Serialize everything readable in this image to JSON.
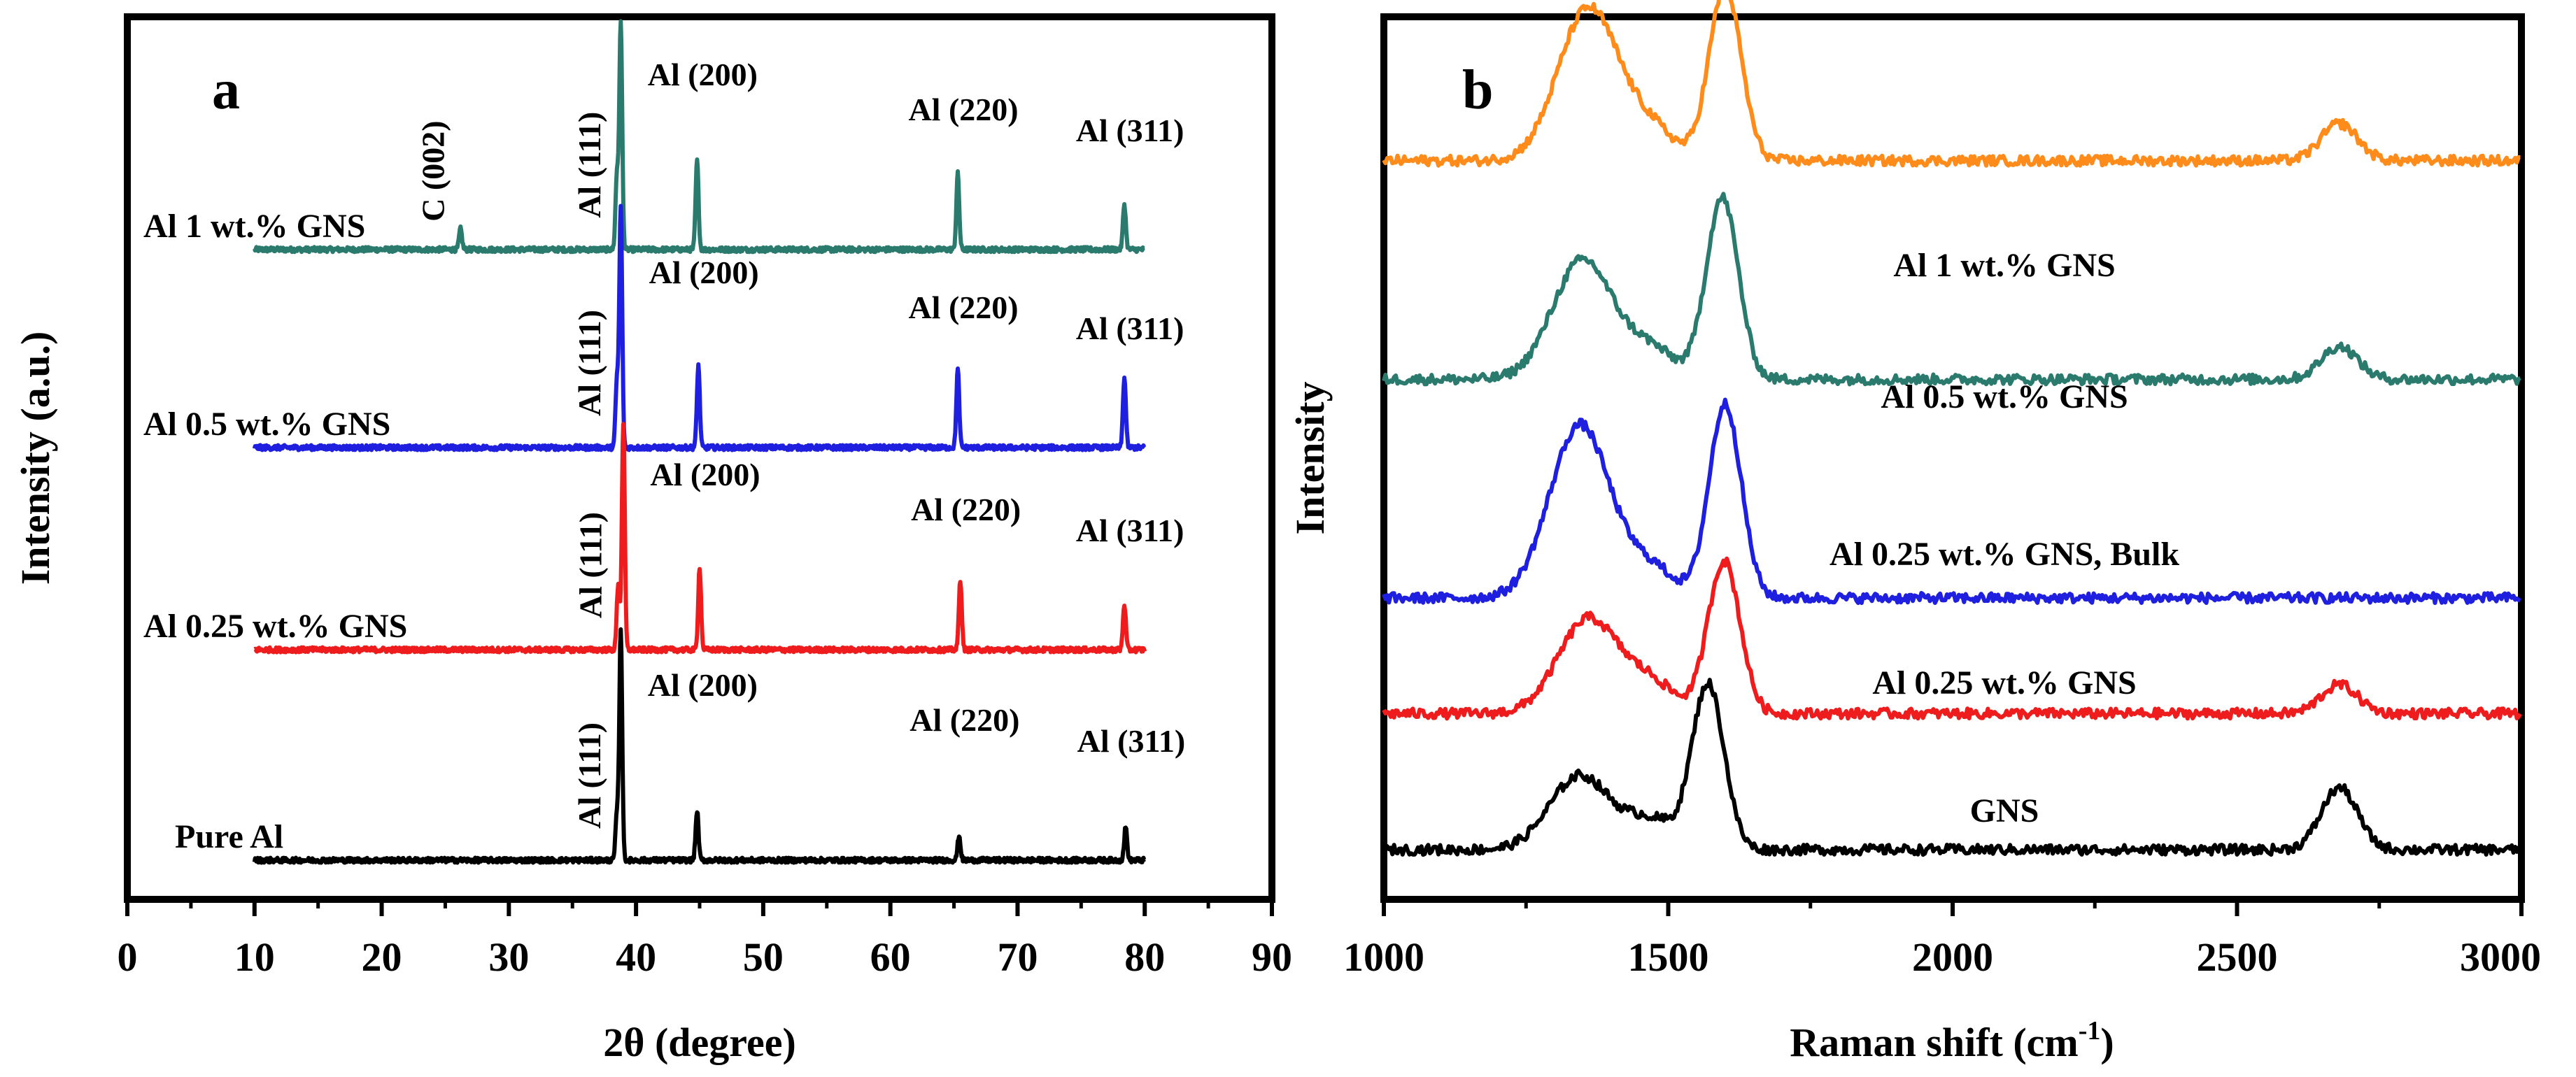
{
  "chart_data": [
    {
      "type": "line",
      "panel_label": "a",
      "xlabel": "2θ (degree)",
      "ylabel": "Intensity (a.u.)",
      "xlim": [
        0,
        90
      ],
      "xticks": [
        "0",
        "10",
        "20",
        "30",
        "40",
        "50",
        "60",
        "70",
        "80",
        "90"
      ],
      "y_ticks_shown": false,
      "x_range_measured": [
        10,
        80
      ],
      "series": [
        {
          "name": "Al 1 wt.% GNS",
          "color": "#2a7a6e",
          "baseline": 7.4,
          "peaks": [
            {
              "x": 26.2,
              "height": 0.25,
              "label": "C (002)"
            },
            {
              "x": 38.5,
              "height": 0.9,
              "label": "Al (111)"
            },
            {
              "x": 38.8,
              "height": 2.75
            },
            {
              "x": 44.8,
              "height": 1.08,
              "label": "Al (200)"
            },
            {
              "x": 65.3,
              "height": 0.92,
              "label": "Al (220)"
            },
            {
              "x": 78.4,
              "height": 0.55,
              "label": "Al (311)"
            }
          ]
        },
        {
          "name": "Al 0.5 wt.% GNS",
          "color": "#1f1fe0",
          "baseline": 5.0,
          "peaks": [
            {
              "x": 38.5,
              "height": 0.8,
              "label": "Al (111)"
            },
            {
              "x": 38.8,
              "height": 2.9
            },
            {
              "x": 44.9,
              "height": 1.0,
              "label": "Al (200)"
            },
            {
              "x": 65.3,
              "height": 0.95,
              "label": "Al (220)"
            },
            {
              "x": 78.4,
              "height": 0.85,
              "label": "Al (311)"
            }
          ]
        },
        {
          "name": "Al 0.25 wt.% GNS",
          "color": "#ee1c1c",
          "baseline": 2.55,
          "peaks": [
            {
              "x": 38.6,
              "height": 0.8,
              "label": "Al (111)"
            },
            {
              "x": 39.0,
              "height": 2.73
            },
            {
              "x": 45.0,
              "height": 1.0,
              "label": "Al (200)"
            },
            {
              "x": 65.5,
              "height": 0.85,
              "label": "Al (220)"
            },
            {
              "x": 78.4,
              "height": 0.55,
              "label": "Al (311)"
            }
          ]
        },
        {
          "name": "Pure Al",
          "color": "#000000",
          "baseline": 0.0,
          "peaks": [
            {
              "x": 38.5,
              "height": 0.55,
              "label": "Al (111)"
            },
            {
              "x": 38.8,
              "height": 2.8
            },
            {
              "x": 44.8,
              "height": 0.6,
              "label": "Al (200)"
            },
            {
              "x": 65.4,
              "height": 0.3,
              "label": "Al (220)"
            },
            {
              "x": 78.5,
              "height": 0.4,
              "label": "Al (311)"
            }
          ]
        }
      ]
    },
    {
      "type": "line",
      "panel_label": "b",
      "xlabel": "Raman shift (cm",
      "xlabel_sup": "-1",
      "xlabel_end": ")",
      "ylabel": "Intensity",
      "xlim": [
        1000,
        3000
      ],
      "xticks": [
        "1000",
        "1500",
        "2000",
        "2500",
        "3000"
      ],
      "y_ticks_shown": false,
      "series": [
        {
          "name": "Al 1 wt.% GNS",
          "color": "#ff8c1a",
          "baseline": 8.35,
          "bands": {
            "D": {
              "x": 1360,
              "height": 1.85
            },
            "G": {
              "x": 1600,
              "height": 2.1
            },
            "2D": {
              "x": 2680,
              "height": 0.45
            }
          }
        },
        {
          "name": "Al 0.5 wt.% GNS",
          "color": "#2a7a6e",
          "baseline": 5.7,
          "bands": {
            "D": {
              "x": 1350,
              "height": 1.45
            },
            "G": {
              "x": 1595,
              "height": 2.2
            },
            "2D": {
              "x": 2680,
              "height": 0.4
            }
          }
        },
        {
          "name": "Al 0.25 wt.% GNS, Bulk",
          "color": "#1f1fe0",
          "baseline": 3.05,
          "bands": {
            "D": {
              "x": 1345,
              "height": 2.1
            },
            "G": {
              "x": 1600,
              "height": 2.35
            },
            "2D": {
              "x": 2680,
              "height": 0.0
            }
          }
        },
        {
          "name": "Al 0.25 wt.% GNS",
          "color": "#ee1c1c",
          "baseline": 1.65,
          "bands": {
            "D": {
              "x": 1360,
              "height": 1.15
            },
            "G": {
              "x": 1598,
              "height": 1.85
            },
            "2D": {
              "x": 2680,
              "height": 0.35
            }
          }
        },
        {
          "name": "GNS",
          "color": "#000000",
          "baseline": 0.0,
          "bands": {
            "D": {
              "x": 1345,
              "height": 0.9
            },
            "G": {
              "x": 1570,
              "height": 2.0
            },
            "2D": {
              "x": 2680,
              "height": 0.75
            }
          }
        }
      ]
    }
  ]
}
